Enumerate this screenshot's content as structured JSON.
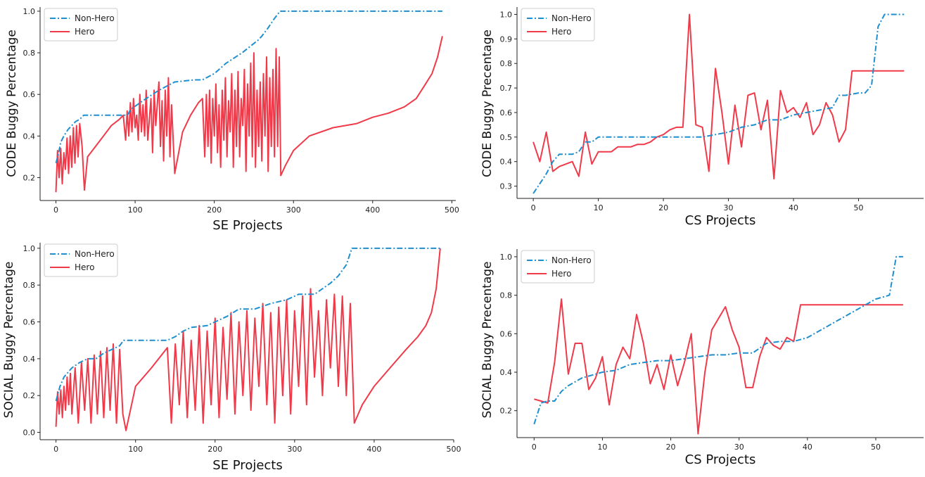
{
  "chart_data": [
    {
      "type": "line",
      "xlabel": "SE Projects",
      "ylabel": "CODE Buggy Percentage",
      "xlim": [
        -20,
        505
      ],
      "ylim": [
        0.09,
        1.02
      ],
      "xticks": [
        "0",
        "100",
        "200",
        "300",
        "400",
        "500"
      ],
      "yticks": [
        "0.2",
        "0.4",
        "0.6",
        "0.8",
        "1.0"
      ],
      "legend": "top-left",
      "grid": false,
      "colors": {
        "Non-Hero": "#1f8fcf",
        "Hero": "#f03a4a"
      },
      "series": [
        {
          "name": "Non-Hero",
          "x": [
            0,
            3,
            6,
            10,
            15,
            20,
            25,
            30,
            35,
            60,
            90,
            95,
            110,
            130,
            150,
            175,
            185,
            200,
            215,
            235,
            245,
            255,
            260,
            268,
            275,
            283,
            300,
            350,
            400,
            450,
            488
          ],
          "y": [
            0.27,
            0.31,
            0.37,
            0.4,
            0.43,
            0.45,
            0.47,
            0.48,
            0.5,
            0.5,
            0.5,
            0.53,
            0.57,
            0.62,
            0.66,
            0.67,
            0.67,
            0.7,
            0.75,
            0.8,
            0.83,
            0.86,
            0.88,
            0.92,
            0.96,
            1.0,
            1.0,
            1.0,
            1.0,
            1.0,
            1.0
          ]
        },
        {
          "name": "Hero",
          "x": [
            0,
            2,
            4,
            6,
            8,
            10,
            12,
            14,
            16,
            18,
            20,
            22,
            24,
            26,
            28,
            30,
            33,
            36,
            40,
            50,
            60,
            70,
            80,
            85,
            88,
            90,
            92,
            94,
            96,
            98,
            100,
            102,
            104,
            106,
            108,
            110,
            112,
            114,
            116,
            118,
            120,
            122,
            124,
            126,
            128,
            130,
            132,
            134,
            136,
            138,
            140,
            142,
            144,
            146,
            150,
            160,
            170,
            180,
            185,
            188,
            190,
            192,
            194,
            196,
            198,
            200,
            202,
            204,
            206,
            208,
            210,
            212,
            214,
            216,
            218,
            220,
            222,
            224,
            226,
            228,
            230,
            232,
            234,
            236,
            238,
            240,
            242,
            244,
            246,
            248,
            250,
            252,
            254,
            256,
            258,
            260,
            262,
            264,
            266,
            268,
            270,
            272,
            274,
            276,
            278,
            280,
            282,
            284,
            290,
            300,
            320,
            350,
            380,
            400,
            420,
            440,
            455,
            465,
            475,
            482,
            488
          ],
          "y": [
            0.13,
            0.33,
            0.2,
            0.34,
            0.17,
            0.32,
            0.24,
            0.39,
            0.22,
            0.4,
            0.25,
            0.44,
            0.27,
            0.45,
            0.3,
            0.46,
            0.35,
            0.14,
            0.3,
            0.35,
            0.4,
            0.45,
            0.48,
            0.5,
            0.38,
            0.52,
            0.4,
            0.56,
            0.42,
            0.58,
            0.44,
            0.5,
            0.38,
            0.6,
            0.42,
            0.55,
            0.4,
            0.62,
            0.38,
            0.48,
            0.58,
            0.32,
            0.62,
            0.45,
            0.55,
            0.66,
            0.35,
            0.57,
            0.28,
            0.62,
            0.4,
            0.68,
            0.3,
            0.55,
            0.22,
            0.42,
            0.5,
            0.56,
            0.58,
            0.3,
            0.6,
            0.35,
            0.62,
            0.27,
            0.58,
            0.4,
            0.65,
            0.32,
            0.55,
            0.25,
            0.62,
            0.38,
            0.68,
            0.3,
            0.57,
            0.42,
            0.7,
            0.25,
            0.62,
            0.35,
            0.71,
            0.3,
            0.58,
            0.45,
            0.72,
            0.23,
            0.65,
            0.4,
            0.75,
            0.3,
            0.8,
            0.25,
            0.62,
            0.35,
            0.66,
            0.28,
            0.7,
            0.4,
            0.78,
            0.23,
            0.68,
            0.35,
            0.72,
            0.3,
            0.82,
            0.35,
            0.78,
            0.21,
            0.26,
            0.33,
            0.4,
            0.44,
            0.46,
            0.49,
            0.51,
            0.54,
            0.58,
            0.64,
            0.7,
            0.78,
            0.88
          ]
        }
      ]
    },
    {
      "type": "line",
      "xlabel": "CS Projects",
      "ylabel": "CODE Buggy Precentage",
      "xlim": [
        -2.5,
        60
      ],
      "ylim": [
        0.25,
        1.03
      ],
      "xticks": [
        "0",
        "10",
        "20",
        "30",
        "40",
        "50"
      ],
      "yticks": [
        "0.3",
        "0.4",
        "0.5",
        "0.6",
        "0.7",
        "0.8",
        "0.9",
        "1.0"
      ],
      "legend": "top-left",
      "grid": false,
      "colors": {
        "Non-Hero": "#1f8fcf",
        "Hero": "#f03a4a"
      },
      "series": [
        {
          "name": "Non-Hero",
          "x": [
            0,
            1,
            2,
            3,
            4,
            5,
            6,
            7,
            8,
            9,
            10,
            12,
            14,
            16,
            18,
            20,
            22,
            24,
            26,
            28,
            30,
            32,
            34,
            36,
            38,
            40,
            42,
            44,
            46,
            47,
            48,
            50,
            51,
            52,
            53,
            54,
            55,
            56,
            57
          ],
          "y": [
            0.27,
            0.31,
            0.35,
            0.4,
            0.43,
            0.43,
            0.43,
            0.44,
            0.48,
            0.48,
            0.5,
            0.5,
            0.5,
            0.5,
            0.5,
            0.5,
            0.5,
            0.5,
            0.5,
            0.51,
            0.52,
            0.54,
            0.55,
            0.57,
            0.57,
            0.59,
            0.6,
            0.61,
            0.62,
            0.67,
            0.67,
            0.68,
            0.68,
            0.71,
            0.95,
            1.0,
            1.0,
            1.0,
            1.0
          ]
        },
        {
          "name": "Hero",
          "x": [
            0,
            1,
            2,
            3,
            4,
            5,
            6,
            7,
            8,
            9,
            10,
            11,
            12,
            13,
            14,
            15,
            16,
            17,
            18,
            19,
            20,
            21,
            22,
            23,
            24,
            25,
            26,
            27,
            28,
            29,
            30,
            31,
            32,
            33,
            34,
            35,
            36,
            37,
            38,
            39,
            40,
            41,
            42,
            43,
            44,
            45,
            46,
            47,
            48,
            49,
            50,
            51,
            52,
            53,
            54,
            55,
            56,
            57
          ],
          "y": [
            0.48,
            0.4,
            0.52,
            0.36,
            0.38,
            0.39,
            0.4,
            0.34,
            0.52,
            0.39,
            0.44,
            0.44,
            0.44,
            0.46,
            0.46,
            0.46,
            0.47,
            0.47,
            0.48,
            0.5,
            0.51,
            0.53,
            0.54,
            0.54,
            1.0,
            0.55,
            0.54,
            0.36,
            0.78,
            0.6,
            0.39,
            0.63,
            0.46,
            0.67,
            0.68,
            0.53,
            0.65,
            0.33,
            0.69,
            0.6,
            0.62,
            0.58,
            0.64,
            0.51,
            0.55,
            0.64,
            0.59,
            0.48,
            0.53,
            0.77,
            0.77,
            0.77,
            0.77,
            0.77,
            0.77,
            0.77,
            0.77,
            0.77
          ]
        }
      ]
    },
    {
      "type": "line",
      "xlabel": "SE Projects",
      "ylabel": "SOCIAL Buggy Percentage",
      "xlim": [
        -20,
        500
      ],
      "ylim": [
        -0.04,
        1.03
      ],
      "xticks": [
        "0",
        "100",
        "200",
        "300",
        "400",
        "500"
      ],
      "yticks": [
        "0.0",
        "0.2",
        "0.4",
        "0.6",
        "0.8",
        "1.0"
      ],
      "legend": "top-left",
      "grid": false,
      "colors": {
        "Non-Hero": "#1f8fcf",
        "Hero": "#f03a4a"
      },
      "series": [
        {
          "name": "Non-Hero",
          "x": [
            0,
            5,
            10,
            20,
            30,
            40,
            50,
            60,
            70,
            80,
            85,
            90,
            140,
            150,
            160,
            170,
            190,
            200,
            215,
            230,
            250,
            270,
            290,
            305,
            325,
            335,
            345,
            355,
            365,
            372,
            400,
            450,
            485
          ],
          "y": [
            0.17,
            0.25,
            0.3,
            0.35,
            0.38,
            0.4,
            0.4,
            0.43,
            0.45,
            0.47,
            0.5,
            0.5,
            0.5,
            0.52,
            0.55,
            0.57,
            0.58,
            0.6,
            0.63,
            0.67,
            0.67,
            0.7,
            0.72,
            0.75,
            0.75,
            0.78,
            0.81,
            0.85,
            0.91,
            1.0,
            1.0,
            1.0,
            1.0
          ]
        },
        {
          "name": "Hero",
          "x": [
            0,
            2,
            4,
            6,
            8,
            10,
            12,
            14,
            16,
            18,
            20,
            24,
            28,
            32,
            36,
            40,
            44,
            48,
            52,
            56,
            60,
            64,
            68,
            72,
            76,
            80,
            84,
            88,
            100,
            120,
            140,
            145,
            150,
            155,
            160,
            165,
            170,
            175,
            180,
            185,
            190,
            195,
            200,
            205,
            210,
            215,
            220,
            225,
            230,
            235,
            240,
            245,
            250,
            255,
            260,
            265,
            270,
            275,
            280,
            285,
            290,
            295,
            300,
            305,
            310,
            315,
            320,
            325,
            330,
            335,
            340,
            345,
            350,
            355,
            360,
            365,
            370,
            375,
            385,
            400,
            420,
            440,
            455,
            465,
            472,
            478,
            483
          ],
          "y": [
            0.03,
            0.22,
            0.1,
            0.23,
            0.08,
            0.25,
            0.12,
            0.3,
            0.15,
            0.32,
            0.1,
            0.35,
            0.05,
            0.38,
            0.12,
            0.4,
            0.05,
            0.42,
            0.1,
            0.44,
            0.08,
            0.46,
            0.12,
            0.48,
            0.05,
            0.45,
            0.1,
            0.01,
            0.25,
            0.35,
            0.46,
            0.05,
            0.48,
            0.15,
            0.55,
            0.08,
            0.5,
            0.12,
            0.58,
            0.05,
            0.55,
            0.15,
            0.62,
            0.08,
            0.57,
            0.18,
            0.65,
            0.1,
            0.6,
            0.2,
            0.66,
            0.12,
            0.62,
            0.25,
            0.7,
            0.15,
            0.65,
            0.05,
            0.68,
            0.2,
            0.72,
            0.1,
            0.66,
            0.25,
            0.74,
            0.15,
            0.78,
            0.3,
            0.66,
            0.2,
            0.72,
            0.35,
            0.75,
            0.25,
            0.74,
            0.2,
            0.7,
            0.05,
            0.15,
            0.25,
            0.35,
            0.45,
            0.52,
            0.58,
            0.65,
            0.78,
            1.0
          ]
        }
      ]
    },
    {
      "type": "line",
      "xlabel": "CS Projects",
      "ylabel": "SOCIAL Buggy Precentage",
      "xlim": [
        -2.5,
        57
      ],
      "ylim": [
        0.06,
        1.04
      ],
      "xticks": [
        "0",
        "10",
        "20",
        "30",
        "40",
        "50"
      ],
      "yticks": [
        "0.2",
        "0.4",
        "0.6",
        "0.8",
        "1.0"
      ],
      "legend": "top-left",
      "grid": false,
      "colors": {
        "Non-Hero": "#1f8fcf",
        "Hero": "#f03a4a"
      },
      "series": [
        {
          "name": "Non-Hero",
          "x": [
            0,
            1,
            2,
            3,
            4,
            5,
            6,
            7,
            8,
            9,
            10,
            12,
            14,
            16,
            18,
            20,
            22,
            24,
            26,
            28,
            30,
            32,
            34,
            36,
            38,
            40,
            42,
            44,
            46,
            48,
            50,
            51,
            52,
            53,
            54
          ],
          "y": [
            0.13,
            0.24,
            0.25,
            0.25,
            0.3,
            0.33,
            0.35,
            0.37,
            0.38,
            0.39,
            0.4,
            0.41,
            0.44,
            0.45,
            0.46,
            0.46,
            0.47,
            0.48,
            0.49,
            0.49,
            0.5,
            0.5,
            0.55,
            0.56,
            0.56,
            0.58,
            0.62,
            0.66,
            0.7,
            0.74,
            0.78,
            0.79,
            0.8,
            1.0,
            1.0
          ]
        },
        {
          "name": "Hero",
          "x": [
            0,
            1,
            2,
            3,
            4,
            5,
            6,
            7,
            8,
            9,
            10,
            11,
            12,
            13,
            14,
            15,
            16,
            17,
            18,
            19,
            20,
            21,
            22,
            23,
            24,
            25,
            26,
            27,
            28,
            29,
            30,
            31,
            32,
            33,
            34,
            35,
            36,
            37,
            38,
            39,
            40,
            41,
            42,
            43,
            44,
            45,
            46,
            47,
            48,
            49,
            50,
            51,
            52,
            53,
            54
          ],
          "y": [
            0.26,
            0.25,
            0.24,
            0.45,
            0.78,
            0.39,
            0.55,
            0.55,
            0.31,
            0.37,
            0.48,
            0.23,
            0.44,
            0.53,
            0.47,
            0.7,
            0.55,
            0.34,
            0.44,
            0.31,
            0.49,
            0.33,
            0.45,
            0.6,
            0.08,
            0.4,
            0.62,
            0.68,
            0.74,
            0.62,
            0.53,
            0.32,
            0.32,
            0.48,
            0.58,
            0.54,
            0.52,
            0.58,
            0.56,
            0.75,
            0.75,
            0.75,
            0.75,
            0.75,
            0.75,
            0.75,
            0.75,
            0.75,
            0.75,
            0.75,
            0.75,
            0.75,
            0.75,
            0.75,
            0.75
          ]
        }
      ]
    }
  ]
}
